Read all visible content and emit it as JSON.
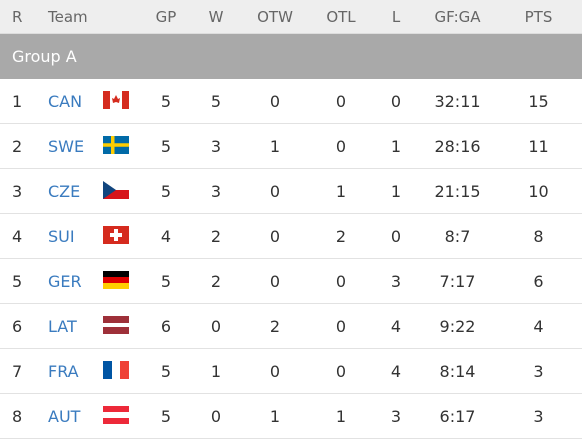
{
  "table": {
    "header": [
      "R",
      "Team",
      "GP",
      "W",
      "OTW",
      "OTL",
      "L",
      "GF:GA",
      "PTS"
    ],
    "group": "Group A",
    "rows": [
      [
        1,
        "CAN",
        5,
        5,
        0,
        0,
        0,
        "32:11",
        15
      ],
      [
        2,
        "SWE",
        5,
        3,
        1,
        0,
        1,
        "28:16",
        11
      ],
      [
        3,
        "CZE",
        5,
        3,
        0,
        1,
        1,
        "21:15",
        10
      ],
      [
        4,
        "SUI",
        4,
        2,
        0,
        2,
        0,
        "8:7",
        8
      ],
      [
        5,
        "GER",
        5,
        2,
        0,
        0,
        3,
        "7:17",
        6
      ],
      [
        6,
        "LAT",
        6,
        0,
        2,
        0,
        4,
        "9:22",
        4
      ],
      [
        7,
        "FRA",
        5,
        1,
        0,
        0,
        4,
        "8:14",
        3
      ],
      [
        8,
        "AUT",
        5,
        0,
        1,
        1,
        3,
        "6:17",
        3
      ]
    ]
  }
}
